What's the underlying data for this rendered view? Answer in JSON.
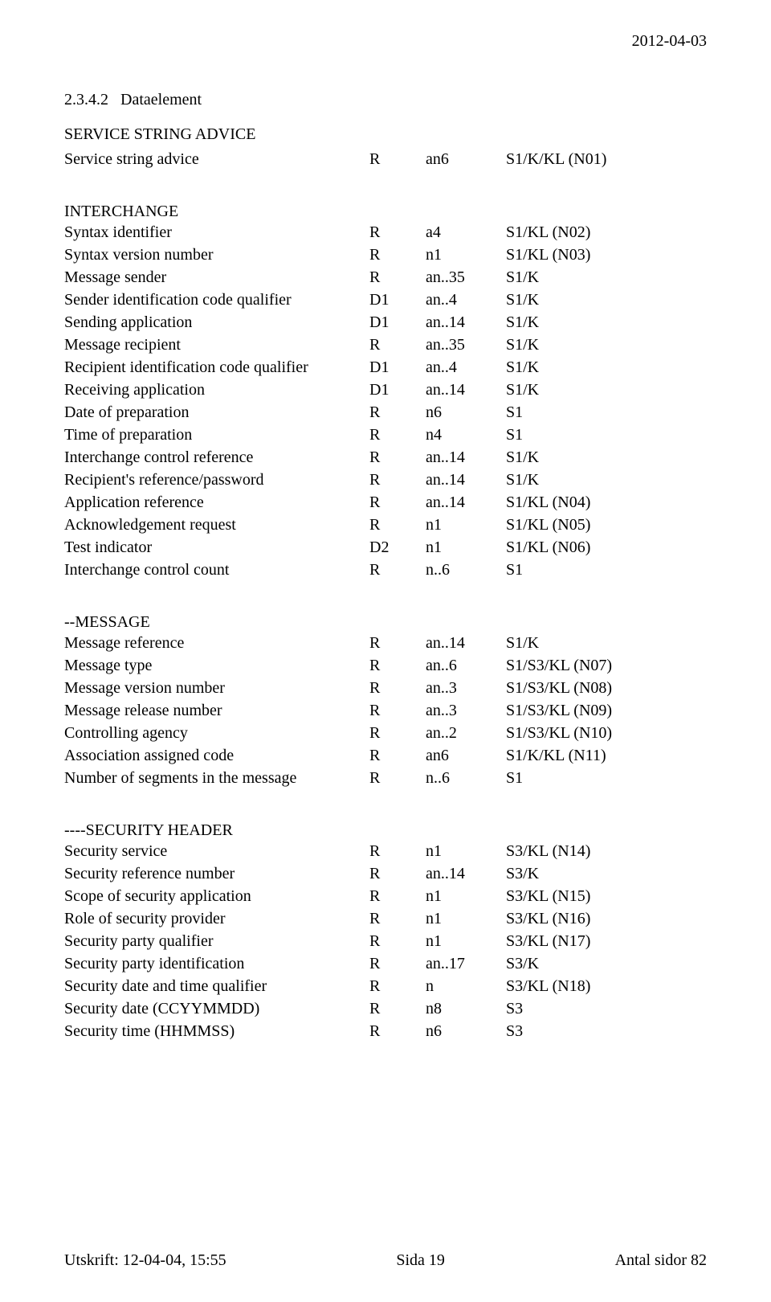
{
  "header_date": "2012-04-03",
  "section_number": "2.3.4.2",
  "section_title": "Dataelement",
  "groups": [
    {
      "heading": "SERVICE STRING ADVICE",
      "rows": [
        {
          "name": "Service string advice",
          "c2": "R",
          "c3": "an6",
          "c4": "S1/K/KL (N01)"
        }
      ]
    },
    {
      "heading": "INTERCHANGE",
      "rows": [
        {
          "name": "Syntax identifier",
          "c2": "R",
          "c3": "a4",
          "c4": "S1/KL (N02)"
        },
        {
          "name": "Syntax version number",
          "c2": "R",
          "c3": "n1",
          "c4": "S1/KL (N03)"
        },
        {
          "name": "Message sender",
          "c2": "R",
          "c3": "an..35",
          "c4": "S1/K"
        },
        {
          "name": "Sender identification code qualifier",
          "c2": "D1",
          "c3": "an..4",
          "c4": "S1/K"
        },
        {
          "name": "Sending application",
          "c2": "D1",
          "c3": "an..14",
          "c4": "S1/K"
        },
        {
          "name": "Message recipient",
          "c2": "R",
          "c3": "an..35",
          "c4": "S1/K"
        },
        {
          "name": "Recipient identification code qualifier",
          "c2": "D1",
          "c3": "an..4",
          "c4": "S1/K"
        },
        {
          "name": "Receiving application",
          "c2": "D1",
          "c3": "an..14",
          "c4": "S1/K"
        },
        {
          "name": "Date of preparation",
          "c2": "R",
          "c3": "n6",
          "c4": "S1"
        },
        {
          "name": "Time of preparation",
          "c2": "R",
          "c3": "n4",
          "c4": "S1"
        },
        {
          "name": "Interchange control reference",
          "c2": "R",
          "c3": "an..14",
          "c4": "S1/K"
        },
        {
          "name": "Recipient's reference/password",
          "c2": "R",
          "c3": "an..14",
          "c4": "S1/K"
        },
        {
          "name": "Application reference",
          "c2": "R",
          "c3": "an..14",
          "c4": "S1/KL (N04)"
        },
        {
          "name": "Acknowledgement request",
          "c2": "R",
          "c3": "n1",
          "c4": "S1/KL (N05)"
        },
        {
          "name": "Test indicator",
          "c2": "D2",
          "c3": "n1",
          "c4": "S1/KL (N06)"
        },
        {
          "name": "Interchange control count",
          "c2": "R",
          "c3": "n..6",
          "c4": "S1"
        }
      ]
    },
    {
      "heading": "--MESSAGE",
      "rows": [
        {
          "name": "Message reference",
          "c2": "R",
          "c3": "an..14",
          "c4": "S1/K"
        },
        {
          "name": "Message type",
          "c2": "R",
          "c3": "an..6",
          "c4": "S1/S3/KL (N07)"
        },
        {
          "name": "Message version number",
          "c2": "R",
          "c3": "an..3",
          "c4": "S1/S3/KL (N08)"
        },
        {
          "name": "Message release number",
          "c2": "R",
          "c3": "an..3",
          "c4": "S1/S3/KL (N09)"
        },
        {
          "name": "Controlling agency",
          "c2": "R",
          "c3": "an..2",
          "c4": "S1/S3/KL (N10)"
        },
        {
          "name": "Association assigned code",
          "c2": "R",
          "c3": "an6",
          "c4": "S1/K/KL (N11)"
        },
        {
          "name": "Number of segments in the message",
          "c2": "R",
          "c3": "n..6",
          "c4": "S1"
        }
      ]
    },
    {
      "heading": "----SECURITY HEADER",
      "rows": [
        {
          "name": "Security service",
          "c2": "R",
          "c3": "n1",
          "c4": "S3/KL (N14)"
        },
        {
          "name": "Security reference number",
          "c2": "R",
          "c3": "an..14",
          "c4": "S3/K"
        },
        {
          "name": "Scope of security application",
          "c2": "R",
          "c3": "n1",
          "c4": "S3/KL (N15)"
        },
        {
          "name": "Role of security provider",
          "c2": "R",
          "c3": "n1",
          "c4": "S3/KL (N16)"
        },
        {
          "name": "Security party qualifier",
          "c2": "R",
          "c3": "n1",
          "c4": "S3/KL (N17)"
        },
        {
          "name": "Security party identification",
          "c2": "R",
          "c3": "an..17",
          "c4": "S3/K"
        },
        {
          "name": "Security date and time qualifier",
          "c2": "R",
          "c3": "n",
          "c4": "S3/KL (N18)"
        },
        {
          "name": "Security date (CCYYMMDD)",
          "c2": "R",
          "c3": "n8",
          "c4": "S3"
        },
        {
          "name": "Security time (HHMMSS)",
          "c2": "R",
          "c3": "n6",
          "c4": "S3"
        }
      ]
    }
  ],
  "footer": {
    "left": "Utskrift: 12-04-04, 15:55",
    "center": "Sida 19",
    "right": "Antal sidor 82"
  }
}
